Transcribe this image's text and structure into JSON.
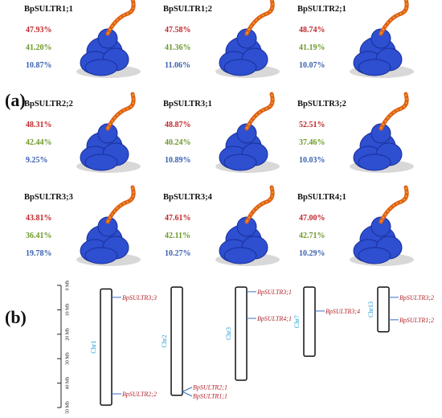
{
  "panel_label_a": "(a)",
  "panel_label_b": "(b)",
  "structures": [
    {
      "name": "BpSULTR1;1",
      "values": [
        "47.93%",
        "41.20%",
        "10.87%"
      ]
    },
    {
      "name": "BpSULTR1;2",
      "values": [
        "47.58%",
        "41.36%",
        "11.06%"
      ]
    },
    {
      "name": "BpSULTR2;1",
      "values": [
        "48.74%",
        "41.19%",
        "10.07%"
      ]
    },
    {
      "name": "BpSULTR2;2",
      "values": [
        "48.31%",
        "42.44%",
        "9.25%"
      ]
    },
    {
      "name": "BpSULTR3;1",
      "values": [
        "48.87%",
        "40.24%",
        "10.89%"
      ]
    },
    {
      "name": "BpSULTR3;2",
      "values": [
        "52.51%",
        "37.46%",
        "10.03%"
      ]
    },
    {
      "name": "BpSULTR3;3",
      "values": [
        "43.81%",
        "36.41%",
        "19.78%"
      ]
    },
    {
      "name": "BpSULTR3;4",
      "values": [
        "47.61%",
        "42.11%",
        "10.27%"
      ]
    },
    {
      "name": "BpSULTR4;1",
      "values": [
        "47.00%",
        "42.71%",
        "10.29%"
      ]
    }
  ],
  "chromosome_map": {
    "ylim": [
      0,
      50
    ],
    "yticks": [
      {
        "value": 0,
        "label": "0 Mb"
      },
      {
        "value": 10,
        "label": "10 Mb"
      },
      {
        "value": 20,
        "label": "20 Mb"
      },
      {
        "value": 30,
        "label": "30 Mb"
      },
      {
        "value": 40,
        "label": "40 Mb"
      },
      {
        "value": 50,
        "label": "50 Mb"
      }
    ],
    "chromosomes": [
      {
        "name": "Chr1",
        "start": 1.5,
        "end": 49,
        "genes": [
          {
            "name": "BpSULTR3;3",
            "position": 4.9
          },
          {
            "name": "BpSULTR2;2",
            "position": 44.4
          }
        ]
      },
      {
        "name": "Chr2",
        "start": 0.7,
        "end": 45,
        "genes": [
          {
            "name": "BpSULTR2;1",
            "position": 43.5
          },
          {
            "name": "BpSULTR1;1",
            "position": 43.5
          }
        ]
      },
      {
        "name": "Chr3",
        "start": 0.7,
        "end": 38.8,
        "genes": [
          {
            "name": "BpSULTR3;1",
            "position": 2.6
          },
          {
            "name": "BpSULTR4;1",
            "position": 13.5
          }
        ]
      },
      {
        "name": "Chr7",
        "start": 0.7,
        "end": 29,
        "genes": [
          {
            "name": "BpSULTR3;4",
            "position": 10.5
          }
        ]
      },
      {
        "name": "Chr13",
        "start": 0.7,
        "end": 19,
        "genes": [
          {
            "name": "BpSULTR3;2",
            "position": 4.9
          },
          {
            "name": "BpSULTR1;2",
            "position": 14.1
          }
        ]
      }
    ]
  }
}
